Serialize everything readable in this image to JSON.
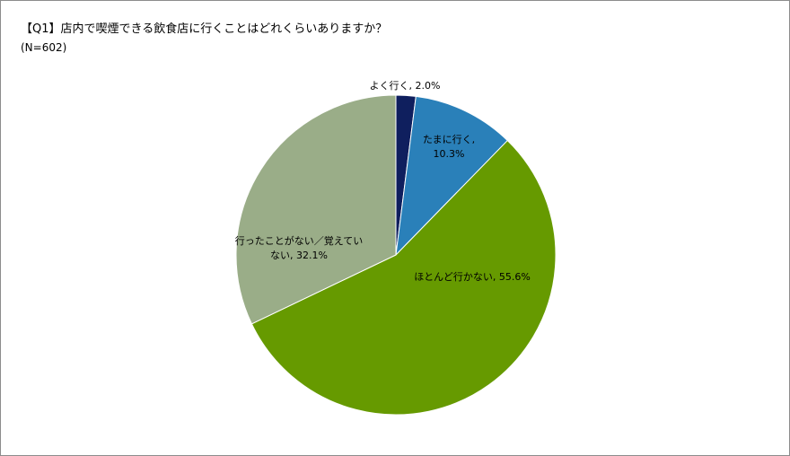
{
  "chart_data": {
    "type": "pie",
    "title": "【Q1】店内で喫煙できる飲食店に行くことはどれくらいありますか？",
    "subtitle": "(N=602)",
    "categories": [
      "よく行く,",
      "たまに行く,",
      "ほとんど行かない,",
      "行ったことがない／覚えていない,"
    ],
    "values": [
      2.0,
      10.3,
      55.6,
      32.1
    ],
    "value_labels": [
      "2.0%",
      "10.3%",
      "55.6%",
      "32.1%"
    ],
    "colors": [
      "#0f1f5e",
      "#2a80b9",
      "#669a00",
      "#9aad88"
    ]
  }
}
